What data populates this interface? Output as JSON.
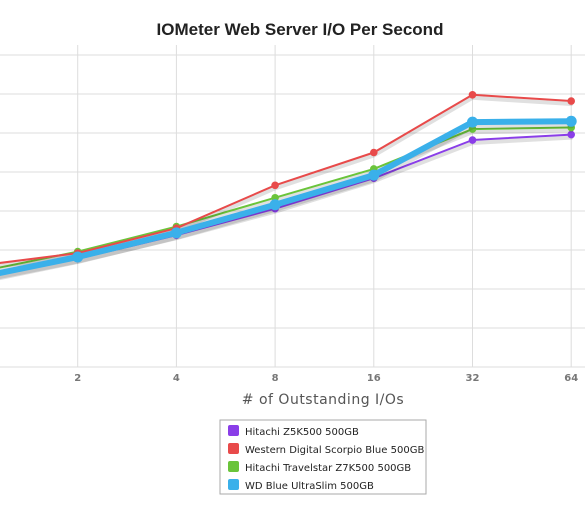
{
  "chart_data": {
    "type": "line",
    "title": "IOMeter Web Server I/O Per Second",
    "xlabel": "# of Outstanding I/Os",
    "ylabel": "",
    "x": [
      1,
      2,
      4,
      8,
      16,
      32,
      64
    ],
    "x_tick_labels": [
      "2",
      "4",
      "8",
      "16",
      "32",
      "64"
    ],
    "ylim": [
      0,
      400
    ],
    "y_gridlines": [
      0,
      50,
      100,
      150,
      200,
      250,
      300,
      350,
      400
    ],
    "grid": true,
    "legend_position": "bottom-center",
    "series": [
      {
        "name": "Hitachi Z5K500 500GB",
        "color": "#8a3ee8",
        "values": [
          114,
          139,
          169,
          203,
          242,
          291,
          298
        ]
      },
      {
        "name": "Western Digital Scorpio Blue 500GB",
        "color": "#e84a4a",
        "values": [
          130,
          146,
          178,
          233,
          275,
          349,
          341
        ]
      },
      {
        "name": "Hitachi Travelstar Z7K500 500GB",
        "color": "#6ac43a",
        "values": [
          122,
          148,
          180,
          217,
          254,
          305,
          307
        ]
      },
      {
        "name": "WD Blue UltraSlim 500GB",
        "color": "#3ab0ea",
        "values": [
          115,
          141,
          172,
          208,
          246,
          314,
          315
        ]
      }
    ]
  }
}
